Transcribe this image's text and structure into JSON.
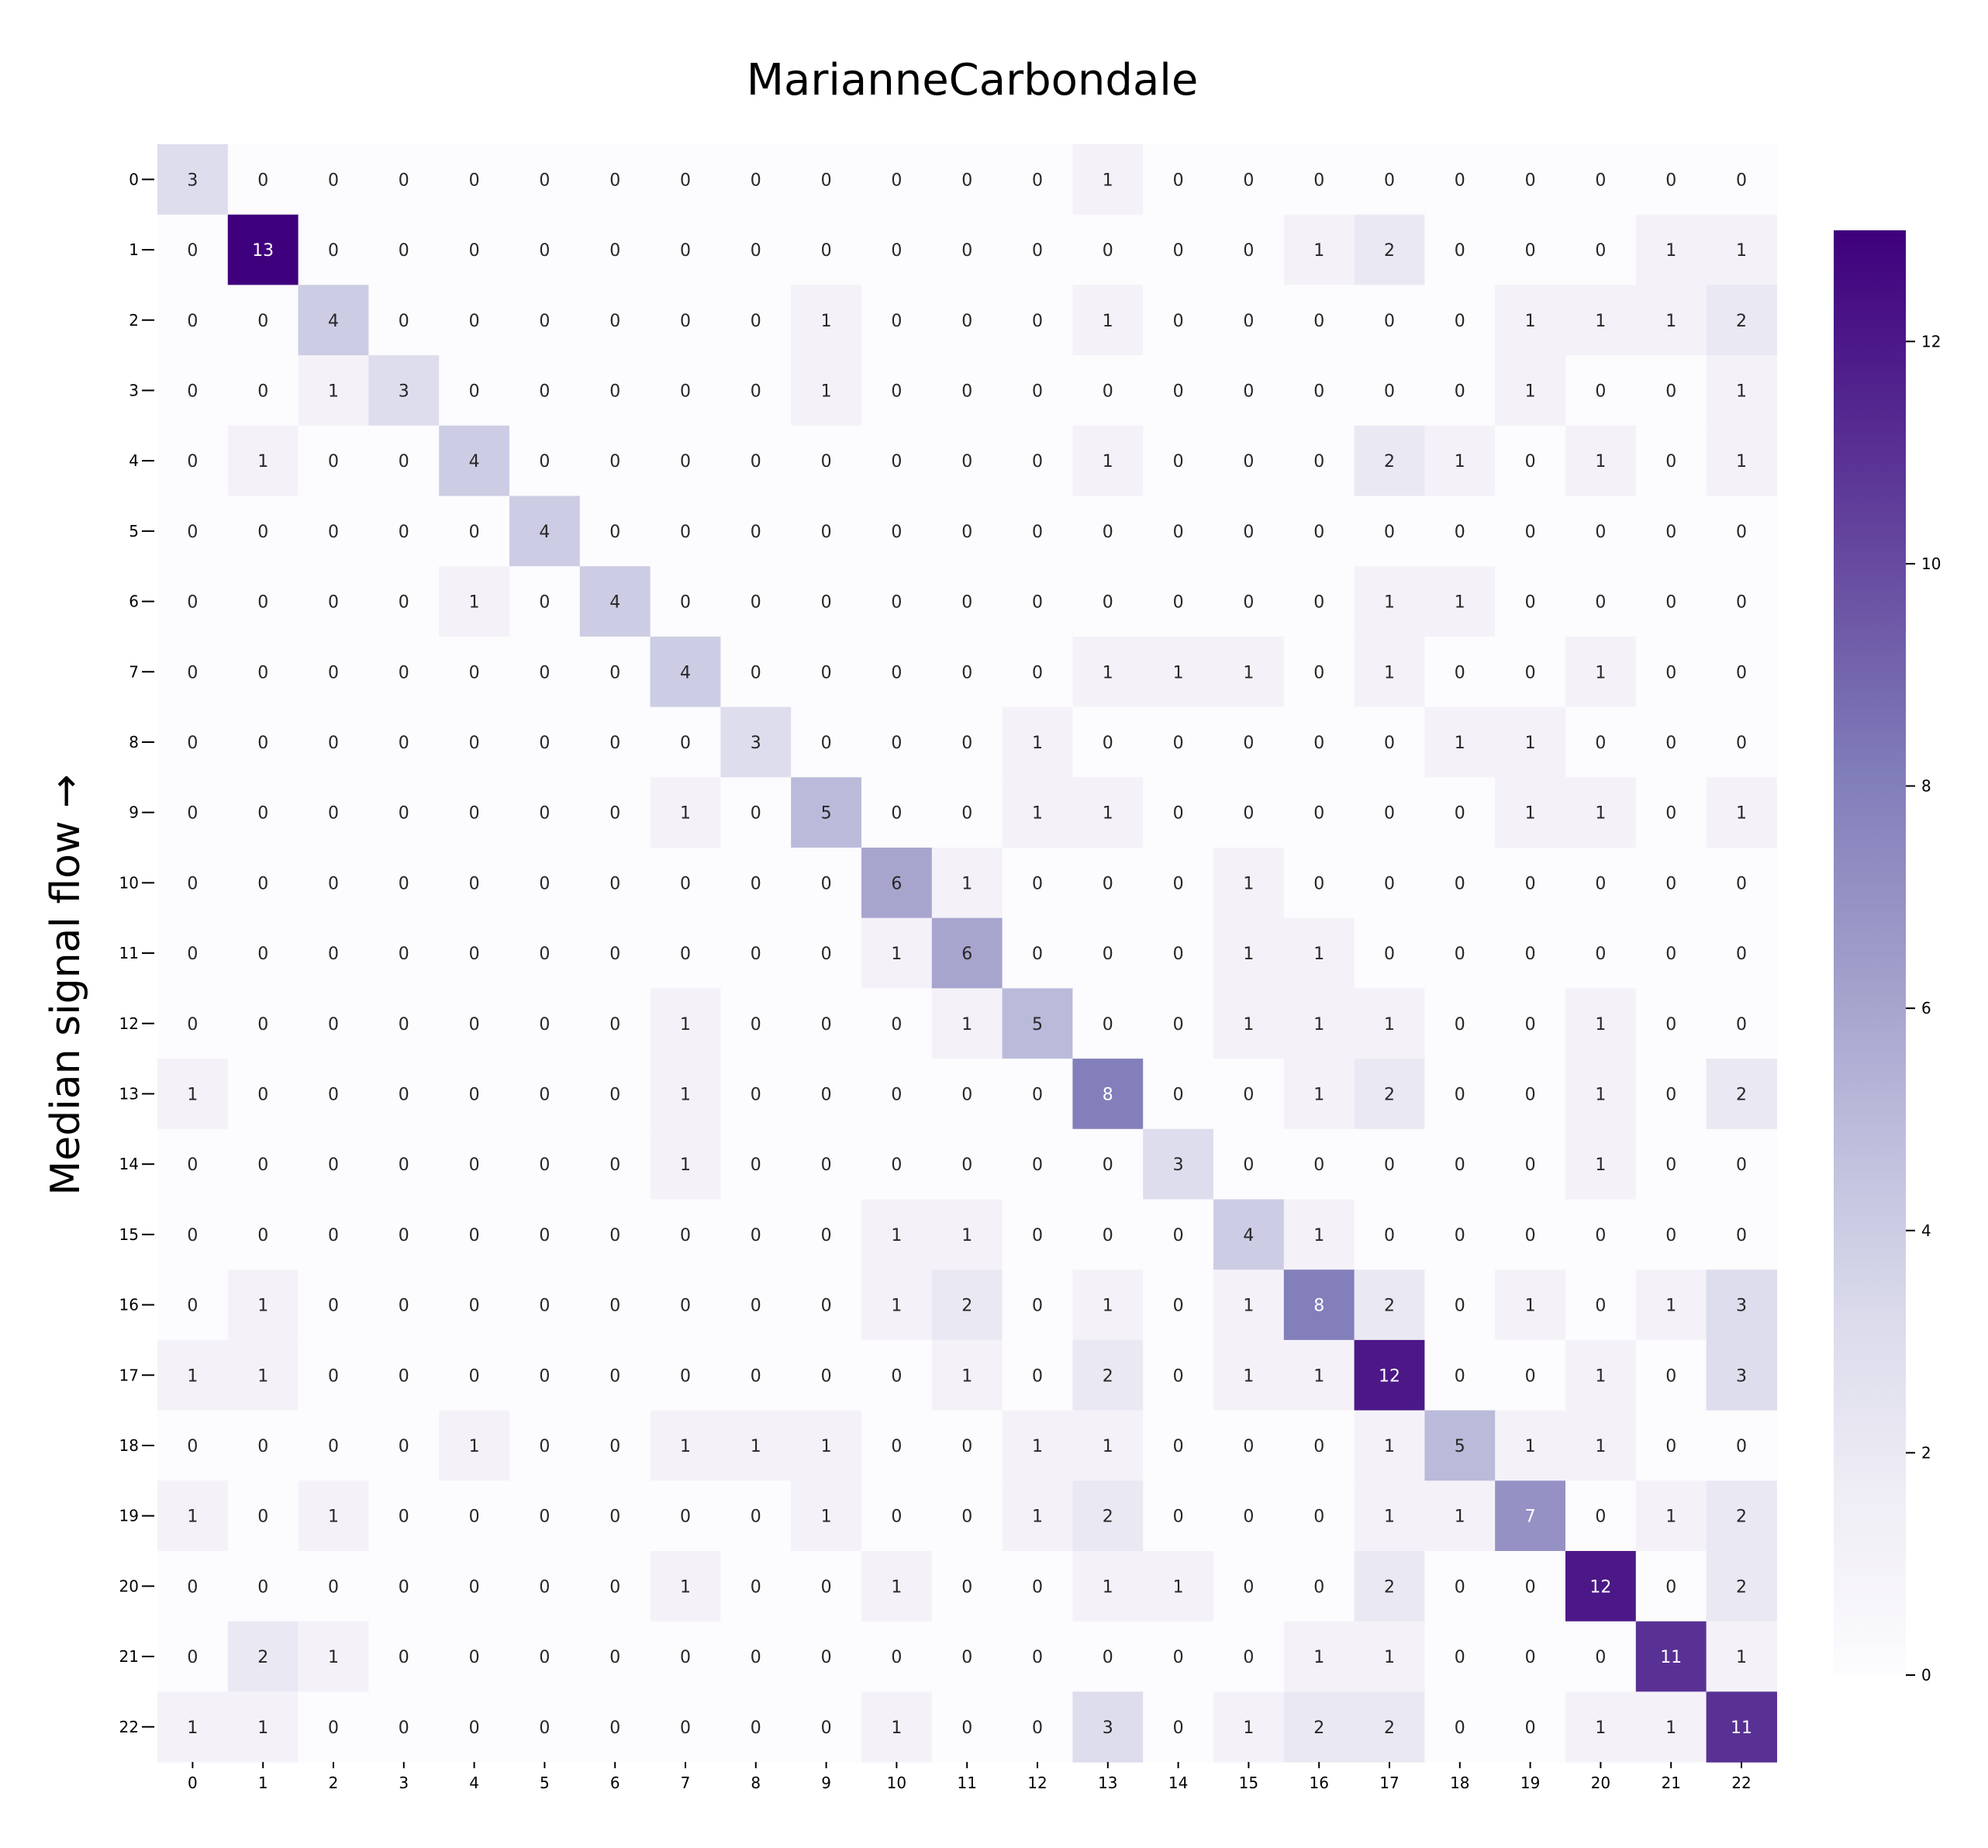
{
  "chart_data": {
    "type": "heatmap",
    "title": "MarianneCarbondale",
    "xlabel": "",
    "ylabel": "Median signal flow →",
    "x_categories": [
      "0",
      "1",
      "2",
      "3",
      "4",
      "5",
      "6",
      "7",
      "8",
      "9",
      "10",
      "11",
      "12",
      "13",
      "14",
      "15",
      "16",
      "17",
      "18",
      "19",
      "20",
      "21",
      "22"
    ],
    "y_categories": [
      "0",
      "1",
      "2",
      "3",
      "4",
      "5",
      "6",
      "7",
      "8",
      "9",
      "10",
      "11",
      "12",
      "13",
      "14",
      "15",
      "16",
      "17",
      "18",
      "19",
      "20",
      "21",
      "22"
    ],
    "values": [
      [
        3,
        0,
        0,
        0,
        0,
        0,
        0,
        0,
        0,
        0,
        0,
        0,
        0,
        1,
        0,
        0,
        0,
        0,
        0,
        0,
        0,
        0,
        0
      ],
      [
        0,
        13,
        0,
        0,
        0,
        0,
        0,
        0,
        0,
        0,
        0,
        0,
        0,
        0,
        0,
        0,
        1,
        2,
        0,
        0,
        0,
        1,
        1
      ],
      [
        0,
        0,
        4,
        0,
        0,
        0,
        0,
        0,
        0,
        1,
        0,
        0,
        0,
        1,
        0,
        0,
        0,
        0,
        0,
        1,
        1,
        1,
        2
      ],
      [
        0,
        0,
        1,
        3,
        0,
        0,
        0,
        0,
        0,
        1,
        0,
        0,
        0,
        0,
        0,
        0,
        0,
        0,
        0,
        1,
        0,
        0,
        1
      ],
      [
        0,
        1,
        0,
        0,
        4,
        0,
        0,
        0,
        0,
        0,
        0,
        0,
        0,
        1,
        0,
        0,
        0,
        2,
        1,
        0,
        1,
        0,
        1
      ],
      [
        0,
        0,
        0,
        0,
        0,
        4,
        0,
        0,
        0,
        0,
        0,
        0,
        0,
        0,
        0,
        0,
        0,
        0,
        0,
        0,
        0,
        0,
        0
      ],
      [
        0,
        0,
        0,
        0,
        1,
        0,
        4,
        0,
        0,
        0,
        0,
        0,
        0,
        0,
        0,
        0,
        0,
        1,
        1,
        0,
        0,
        0,
        0
      ],
      [
        0,
        0,
        0,
        0,
        0,
        0,
        0,
        4,
        0,
        0,
        0,
        0,
        0,
        1,
        1,
        1,
        0,
        1,
        0,
        0,
        1,
        0,
        0
      ],
      [
        0,
        0,
        0,
        0,
        0,
        0,
        0,
        0,
        3,
        0,
        0,
        0,
        1,
        0,
        0,
        0,
        0,
        0,
        1,
        1,
        0,
        0,
        0
      ],
      [
        0,
        0,
        0,
        0,
        0,
        0,
        0,
        1,
        0,
        5,
        0,
        0,
        1,
        1,
        0,
        0,
        0,
        0,
        0,
        1,
        1,
        0,
        1
      ],
      [
        0,
        0,
        0,
        0,
        0,
        0,
        0,
        0,
        0,
        0,
        6,
        1,
        0,
        0,
        0,
        1,
        0,
        0,
        0,
        0,
        0,
        0,
        0
      ],
      [
        0,
        0,
        0,
        0,
        0,
        0,
        0,
        0,
        0,
        0,
        1,
        6,
        0,
        0,
        0,
        1,
        1,
        0,
        0,
        0,
        0,
        0,
        0
      ],
      [
        0,
        0,
        0,
        0,
        0,
        0,
        0,
        1,
        0,
        0,
        0,
        1,
        5,
        0,
        0,
        1,
        1,
        1,
        0,
        0,
        1,
        0,
        0
      ],
      [
        1,
        0,
        0,
        0,
        0,
        0,
        0,
        1,
        0,
        0,
        0,
        0,
        0,
        8,
        0,
        0,
        1,
        2,
        0,
        0,
        1,
        0,
        2
      ],
      [
        0,
        0,
        0,
        0,
        0,
        0,
        0,
        1,
        0,
        0,
        0,
        0,
        0,
        0,
        3,
        0,
        0,
        0,
        0,
        0,
        1,
        0,
        0
      ],
      [
        0,
        0,
        0,
        0,
        0,
        0,
        0,
        0,
        0,
        0,
        1,
        1,
        0,
        0,
        0,
        4,
        1,
        0,
        0,
        0,
        0,
        0,
        0
      ],
      [
        0,
        1,
        0,
        0,
        0,
        0,
        0,
        0,
        0,
        0,
        1,
        2,
        0,
        1,
        0,
        1,
        8,
        2,
        0,
        1,
        0,
        1,
        3
      ],
      [
        1,
        1,
        0,
        0,
        0,
        0,
        0,
        0,
        0,
        0,
        0,
        1,
        0,
        2,
        0,
        1,
        1,
        12,
        0,
        0,
        1,
        0,
        3
      ],
      [
        0,
        0,
        0,
        0,
        1,
        0,
        0,
        1,
        1,
        1,
        0,
        0,
        1,
        1,
        0,
        0,
        0,
        1,
        5,
        1,
        1,
        0,
        0
      ],
      [
        1,
        0,
        1,
        0,
        0,
        0,
        0,
        0,
        0,
        1,
        0,
        0,
        1,
        2,
        0,
        0,
        0,
        1,
        1,
        7,
        0,
        1,
        2
      ],
      [
        0,
        0,
        0,
        0,
        0,
        0,
        0,
        1,
        0,
        0,
        1,
        0,
        0,
        1,
        1,
        0,
        0,
        2,
        0,
        0,
        12,
        0,
        2
      ],
      [
        0,
        2,
        1,
        0,
        0,
        0,
        0,
        0,
        0,
        0,
        0,
        0,
        0,
        0,
        0,
        0,
        1,
        1,
        0,
        0,
        0,
        11,
        1
      ],
      [
        1,
        1,
        0,
        0,
        0,
        0,
        0,
        0,
        0,
        0,
        1,
        0,
        0,
        3,
        0,
        1,
        2,
        2,
        0,
        0,
        1,
        1,
        11
      ]
    ],
    "colorbar": {
      "min": 0,
      "max": 13,
      "ticks": [
        0,
        2,
        4,
        6,
        8,
        10,
        12
      ]
    },
    "colormap": "Purples",
    "colors": {
      "low": "#fcfbfd",
      "high": "#3f007d"
    },
    "grid": false,
    "annotations": true
  }
}
